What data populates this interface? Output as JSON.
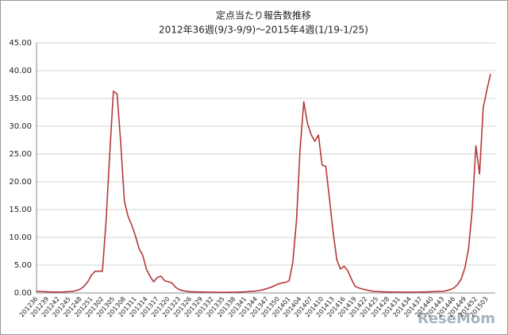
{
  "chart_data": {
    "type": "line",
    "title": "定点当たり報告数推移",
    "subtitle": "2012年36週(9/3-9/9)～2015年4週(1/19-1/25)",
    "watermark": "ReseMom",
    "categories": [
      "201236",
      null,
      null,
      "201239",
      null,
      null,
      "201242",
      null,
      null,
      "201245",
      null,
      null,
      "201248",
      null,
      null,
      "201251",
      null,
      null,
      "201302",
      null,
      null,
      "201305",
      null,
      null,
      "201308",
      null,
      null,
      "201311",
      null,
      null,
      "201314",
      null,
      null,
      "201317",
      null,
      null,
      "201320",
      null,
      null,
      "201323",
      null,
      null,
      "201326",
      null,
      null,
      "201329",
      null,
      null,
      "201332",
      null,
      null,
      "201335",
      null,
      null,
      "201338",
      null,
      null,
      "201341",
      null,
      null,
      "201344",
      null,
      null,
      "201347",
      null,
      null,
      "201350",
      null,
      null,
      "201401",
      null,
      null,
      "201404",
      null,
      null,
      "201407",
      null,
      null,
      "201410",
      null,
      null,
      "201413",
      null,
      null,
      "201416",
      null,
      null,
      "201419",
      null,
      null,
      "201422",
      null,
      null,
      "201425",
      null,
      null,
      "201428",
      null,
      null,
      "201431",
      null,
      null,
      "201434",
      null,
      null,
      "201437",
      null,
      null,
      "201440",
      null,
      null,
      "201443",
      null,
      null,
      "201446",
      null,
      null,
      "201449",
      null,
      null,
      "201452",
      null,
      null,
      "201503",
      null
    ],
    "series": [
      {
        "name": "定点当たり報告数",
        "color": "#b5373a",
        "values": [
          0.27,
          0.25,
          0.22,
          0.2,
          0.18,
          0.17,
          0.16,
          0.17,
          0.2,
          0.25,
          0.3,
          0.45,
          0.7,
          1.2,
          2.0,
          3.2,
          3.9,
          3.9,
          3.9,
          13,
          25,
          36.3,
          35.8,
          27,
          16.5,
          13.8,
          12.2,
          10.3,
          8,
          6.8,
          4.3,
          3,
          2,
          2.8,
          3,
          2.2,
          2,
          1.8,
          1,
          0.6,
          0.4,
          0.3,
          0.2,
          0.2,
          0.18,
          0.17,
          0.15,
          0.14,
          0.13,
          0.12,
          0.12,
          0.12,
          0.12,
          0.13,
          0.14,
          0.15,
          0.17,
          0.2,
          0.25,
          0.3,
          0.35,
          0.45,
          0.6,
          0.8,
          1.0,
          1.3,
          1.6,
          1.8,
          1.9,
          2.2,
          5.5,
          13,
          26,
          34.4,
          30.5,
          28.5,
          27.3,
          28.4,
          23,
          22.8,
          17,
          11,
          6,
          4.3,
          4.8,
          4,
          2.5,
          1.2,
          0.9,
          0.7,
          0.55,
          0.4,
          0.3,
          0.25,
          0.2,
          0.2,
          0.18,
          0.17,
          0.16,
          0.15,
          0.14,
          0.14,
          0.14,
          0.15,
          0.16,
          0.17,
          0.18,
          0.2,
          0.22,
          0.25,
          0.28,
          0.3,
          0.4,
          0.6,
          0.9,
          1.5,
          2.5,
          4.5,
          8,
          15,
          26.5,
          21.4,
          33.3,
          36.5,
          39.4
        ]
      }
    ],
    "ylim": [
      0,
      45
    ],
    "yticks": [
      {
        "value": 0,
        "label": "0.00"
      },
      {
        "value": 5,
        "label": "5.00"
      },
      {
        "value": 10,
        "label": "10.00"
      },
      {
        "value": 15,
        "label": "15.00"
      },
      {
        "value": 20,
        "label": "20.00"
      },
      {
        "value": 25,
        "label": "25.00"
      },
      {
        "value": 30,
        "label": "30.00"
      },
      {
        "value": 35,
        "label": "35.00"
      },
      {
        "value": 40,
        "label": "40.00"
      },
      {
        "value": 45,
        "label": "45.00"
      }
    ],
    "grid": true
  }
}
